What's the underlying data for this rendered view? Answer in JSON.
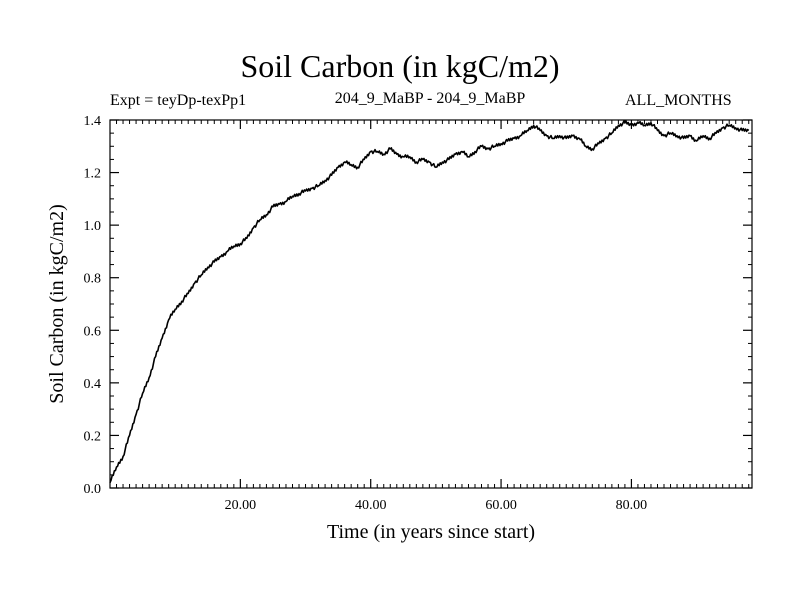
{
  "chart_data": {
    "type": "line",
    "title": "Soil Carbon (in kgC/m2)",
    "subtitle_left": "Expt = teyDp-texPp1",
    "subtitle_center": "204_9_MaBP - 204_9_MaBP",
    "subtitle_right": "ALL_MONTHS",
    "xlabel": "Time (in years since start)",
    "ylabel": "Soil Carbon (in kgC/m2)",
    "xlim": [
      0,
      98.5
    ],
    "ylim": [
      0,
      1.4
    ],
    "x_ticks": [
      20,
      40,
      60,
      80
    ],
    "x_tick_labels": [
      "20.00",
      "40.00",
      "60.00",
      "80.00"
    ],
    "y_ticks": [
      0,
      0.2,
      0.4,
      0.6,
      0.8,
      1.0,
      1.2,
      1.4
    ],
    "y_tick_labels": [
      "0.0",
      "0.2",
      "0.4",
      "0.6",
      "0.8",
      "1.0",
      "1.2",
      "1.4"
    ],
    "series": [
      {
        "name": "Soil Carbon",
        "x": [
          0,
          1,
          2,
          3,
          4,
          5,
          6,
          7,
          8,
          9,
          10,
          11,
          12,
          13,
          14,
          15,
          16,
          17,
          18,
          19,
          20,
          21,
          22,
          23,
          24,
          25,
          26,
          27,
          28,
          29,
          30,
          31,
          32,
          33,
          34,
          35,
          36,
          37,
          38,
          39,
          40,
          41,
          42,
          43,
          44,
          45,
          46,
          47,
          48,
          49,
          50,
          51,
          52,
          53,
          54,
          55,
          56,
          57,
          58,
          59,
          60,
          61,
          62,
          63,
          64,
          65,
          66,
          67,
          68,
          69,
          70,
          71,
          72,
          73,
          74,
          75,
          76,
          77,
          78,
          79,
          80,
          81,
          82,
          83,
          84,
          85,
          86,
          87,
          88,
          89,
          90,
          91,
          92,
          93,
          94,
          95,
          96,
          97,
          98
        ],
        "values": [
          0.02,
          0.08,
          0.12,
          0.2,
          0.28,
          0.36,
          0.42,
          0.5,
          0.57,
          0.64,
          0.68,
          0.71,
          0.74,
          0.78,
          0.81,
          0.84,
          0.86,
          0.88,
          0.9,
          0.92,
          0.93,
          0.95,
          0.99,
          1.02,
          1.04,
          1.07,
          1.08,
          1.09,
          1.11,
          1.12,
          1.13,
          1.14,
          1.15,
          1.17,
          1.19,
          1.22,
          1.24,
          1.23,
          1.22,
          1.25,
          1.28,
          1.28,
          1.27,
          1.29,
          1.27,
          1.26,
          1.26,
          1.24,
          1.25,
          1.24,
          1.22,
          1.24,
          1.25,
          1.27,
          1.28,
          1.26,
          1.28,
          1.3,
          1.29,
          1.3,
          1.31,
          1.32,
          1.33,
          1.34,
          1.36,
          1.38,
          1.36,
          1.34,
          1.33,
          1.34,
          1.33,
          1.34,
          1.33,
          1.3,
          1.29,
          1.31,
          1.33,
          1.35,
          1.38,
          1.39,
          1.38,
          1.39,
          1.38,
          1.39,
          1.36,
          1.34,
          1.35,
          1.34,
          1.33,
          1.34,
          1.32,
          1.34,
          1.33,
          1.35,
          1.37,
          1.38,
          1.37,
          1.36,
          1.36
        ]
      }
    ],
    "grid": false,
    "line_color": "#000000"
  }
}
